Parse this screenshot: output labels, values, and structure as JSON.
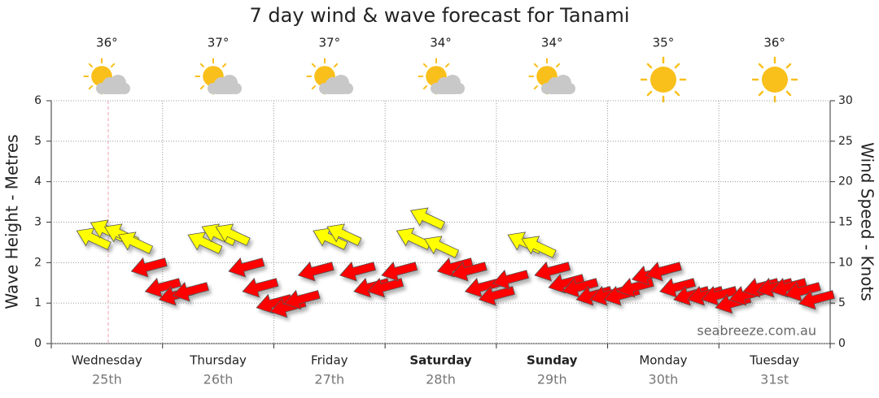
{
  "chart_data": {
    "type": "wind-arrows",
    "title": "7 day wind & wave forecast for Tanami",
    "categories": [
      "Wednesday",
      "Thursday",
      "Friday",
      "Saturday",
      "Sunday",
      "Monday",
      "Tuesday"
    ],
    "dates": [
      "25th",
      "26th",
      "27th",
      "28th",
      "29th",
      "30th",
      "31st"
    ],
    "bold": [
      false,
      false,
      false,
      true,
      true,
      false,
      false
    ],
    "temperatures": [
      "36°",
      "37°",
      "37°",
      "34°",
      "34°",
      "35°",
      "36°"
    ],
    "y_label": "Wave Height - Metres",
    "y2_label": "Wind Speed - Knots",
    "watermark": "seabreeze.com.au",
    "xlim": [
      0,
      168
    ],
    "xticks": [
      0,
      24,
      48,
      72,
      96,
      120,
      144,
      168
    ],
    "ylim": [
      0,
      6
    ],
    "yticks": [
      0,
      1,
      2,
      3,
      4,
      5,
      6
    ],
    "y2lim": [
      0,
      30
    ],
    "y2ticks": [
      0,
      5,
      10,
      15,
      20,
      25,
      30
    ],
    "grid": true,
    "x": [
      9,
      12,
      15,
      18,
      21,
      24,
      27,
      30,
      33,
      36,
      39,
      42,
      45,
      48,
      51,
      54,
      57,
      60,
      63,
      66,
      69,
      72,
      75,
      78,
      81,
      84,
      87,
      90,
      93,
      96,
      99,
      102,
      105,
      108,
      111,
      114,
      117,
      120,
      123,
      126,
      129,
      132,
      135,
      138,
      141,
      144,
      147,
      150,
      153,
      156,
      159,
      162,
      165
    ],
    "series": [
      {
        "axis": "y2",
        "values": [
          13,
          14,
          13.5,
          12.5,
          9.5,
          7,
          6,
          6.5,
          12.5,
          13.5,
          13.5,
          9.5,
          7,
          5,
          4.5,
          5.5,
          9,
          13,
          13.5,
          9,
          7,
          7,
          9,
          13,
          15.5,
          12,
          9.5,
          9,
          7,
          6,
          8,
          12.5,
          12,
          9,
          7.5,
          7,
          6,
          6,
          6,
          7,
          8.5,
          9,
          7,
          6,
          6,
          6,
          5,
          6,
          7,
          7,
          7,
          6.5,
          5.5
        ],
        "direction": [
          115,
          115,
          115,
          115,
          75,
          75,
          75,
          75,
          115,
          115,
          115,
          75,
          75,
          75,
          75,
          75,
          75,
          115,
          115,
          75,
          75,
          75,
          75,
          115,
          115,
          115,
          75,
          75,
          75,
          75,
          75,
          115,
          115,
          75,
          75,
          75,
          75,
          75,
          75,
          75,
          75,
          75,
          75,
          75,
          75,
          75,
          75,
          75,
          75,
          75,
          75,
          75,
          75
        ],
        "colors": [
          "#ffff00",
          "#ffff00",
          "#ffff00",
          "#ffff00",
          "#ff0000",
          "#ff0000",
          "#ff0000",
          "#ff0000",
          "#ffff00",
          "#ffff00",
          "#ffff00",
          "#ff0000",
          "#ff0000",
          "#ff0000",
          "#ff0000",
          "#ff0000",
          "#ff0000",
          "#ffff00",
          "#ffff00",
          "#ff0000",
          "#ff0000",
          "#ff0000",
          "#ff0000",
          "#ffff00",
          "#ffff00",
          "#ffff00",
          "#ff0000",
          "#ff0000",
          "#ff0000",
          "#ff0000",
          "#ff0000",
          "#ffff00",
          "#ffff00",
          "#ff0000",
          "#ff0000",
          "#ff0000",
          "#ff0000",
          "#ff0000",
          "#ff0000",
          "#ff0000",
          "#ff0000",
          "#ff0000",
          "#ff0000",
          "#ff0000",
          "#ff0000",
          "#ff0000",
          "#ff0000",
          "#ff0000",
          "#ff0000",
          "#ff0000",
          "#ff0000",
          "#ff0000",
          "#ff0000"
        ]
      }
    ]
  }
}
